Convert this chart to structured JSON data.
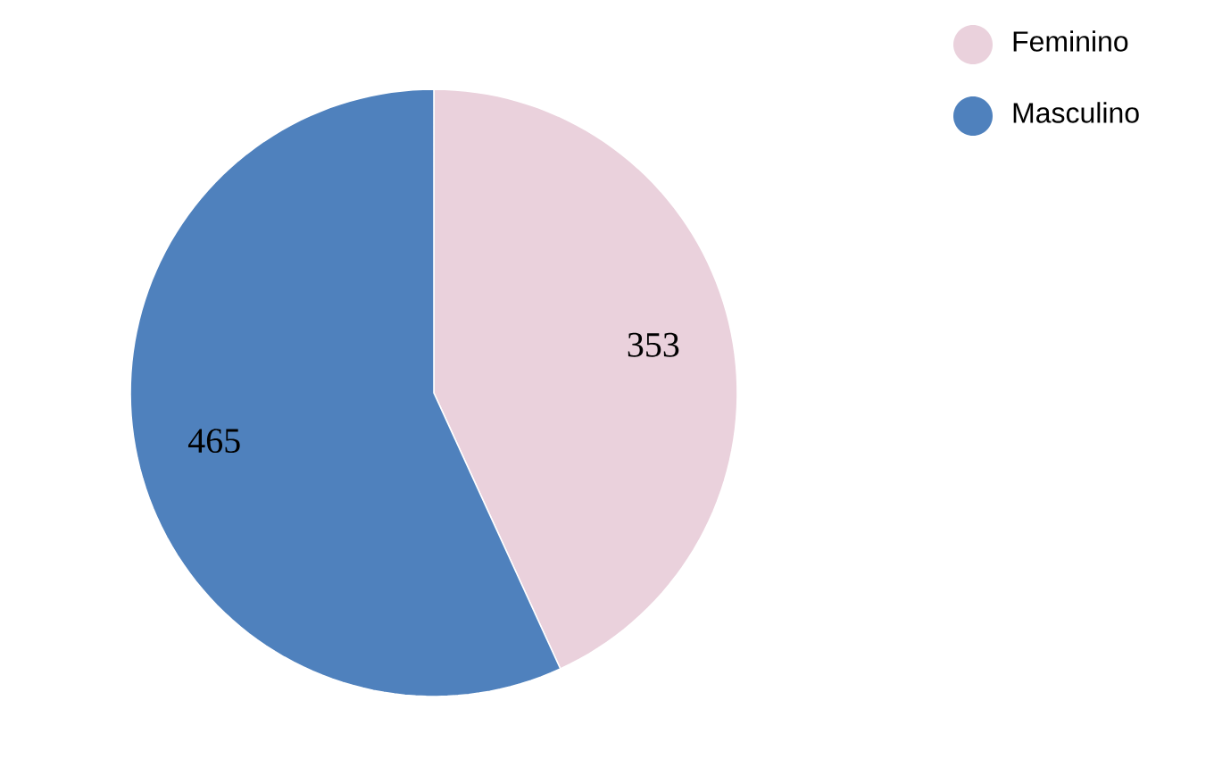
{
  "chart_data": {
    "type": "pie",
    "categories": [
      "Feminino",
      "Masculino"
    ],
    "values": [
      353,
      465
    ],
    "colors": [
      "#ead1dc",
      "#4f81bd"
    ],
    "data_labels": true,
    "legend": "top right"
  }
}
